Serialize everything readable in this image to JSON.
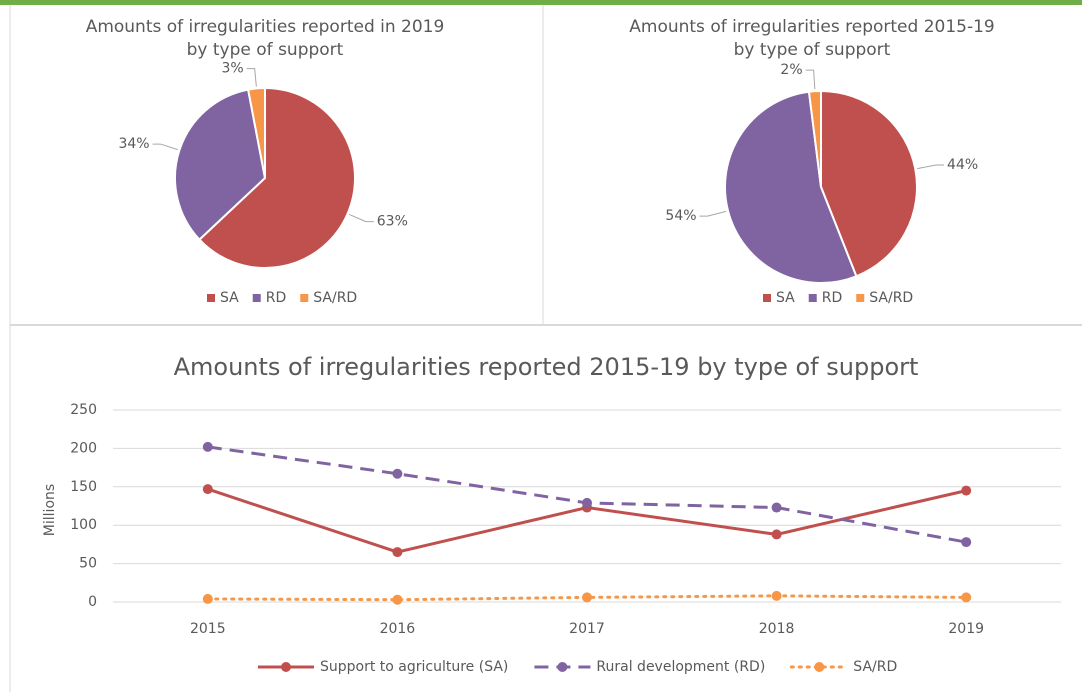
{
  "chart_data": [
    {
      "type": "pie",
      "title": "Amounts of irregularities reported in 2019",
      "subtitle": "by type of support",
      "categories": [
        "SA",
        "RD",
        "SA/RD"
      ],
      "values": [
        63,
        34,
        3
      ],
      "value_labels": [
        "63%",
        "34%",
        "3%"
      ],
      "colors": [
        "#c0504d",
        "#8064a2",
        "#f79646"
      ],
      "legend": "bottom"
    },
    {
      "type": "pie",
      "title": "Amounts of irregularities reported 2015-19",
      "subtitle": "by type of support",
      "categories": [
        "SA",
        "RD",
        "SA/RD"
      ],
      "values": [
        44,
        54,
        2
      ],
      "value_labels": [
        "44%",
        "54%",
        "2%"
      ],
      "colors": [
        "#c0504d",
        "#8064a2",
        "#f79646"
      ],
      "legend": "bottom"
    },
    {
      "type": "line",
      "title": "Amounts of irregularities reported 2015-19 by type of support",
      "y_label": "Millions",
      "categories": [
        "2015",
        "2016",
        "2017",
        "2018",
        "2019"
      ],
      "series": [
        {
          "name": "Support to agriculture (SA)",
          "color": "#c0504d",
          "line_style": "solid",
          "values": [
            147,
            65,
            123,
            88,
            145
          ]
        },
        {
          "name": "Rural development (RD)",
          "color": "#8064a2",
          "line_style": "dashed",
          "values": [
            202,
            167,
            129,
            123,
            78
          ]
        },
        {
          "name": "SA/RD",
          "color": "#f79646",
          "line_style": "dotted",
          "values": [
            4,
            3,
            6,
            8,
            6
          ]
        }
      ],
      "ylim": [
        0,
        250
      ],
      "yticks": [
        0,
        50,
        100,
        150,
        200,
        250
      ],
      "grid": true,
      "legend": "bottom"
    }
  ]
}
